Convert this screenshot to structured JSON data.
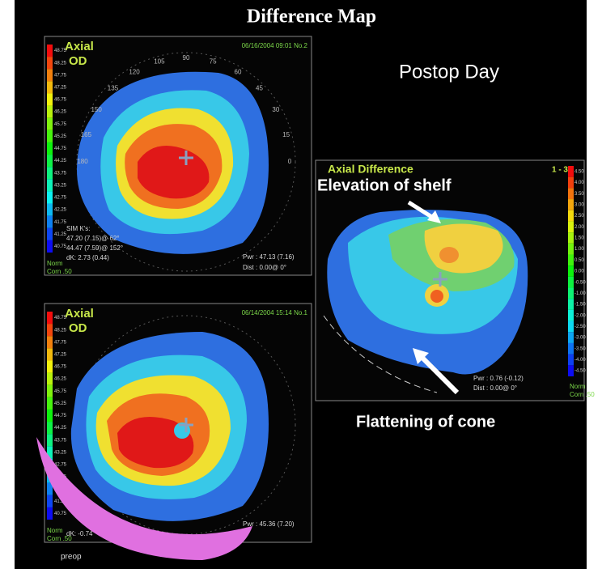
{
  "title": "Difference Map",
  "postop_label": "Postop Day",
  "polar_angles": [
    0,
    15,
    30,
    45,
    60,
    75,
    90,
    105,
    120,
    135,
    150,
    165,
    180
  ],
  "panels": [
    {
      "mode": "Axial",
      "eye": "OD",
      "timestamp": "06/16/2004 09:01 No.2",
      "scale": [
        "48.75",
        "48.25",
        "47.75",
        "47.25",
        "46.75",
        "46.25",
        "45.75",
        "45.25",
        "44.75",
        "44.25",
        "43.75",
        "43.25",
        "42.75",
        "42.25",
        "41.75",
        "41.25",
        "40.75"
      ],
      "scale_footer": [
        "Norm",
        "Corn .50"
      ],
      "sim_k": [
        "SIM K's:",
        "47.20 (7.15)@ 62°",
        "44.47 (7.59)@ 152°",
        "dK: 2.73 (0.44)"
      ],
      "pwr": "Pwr : 47.13 (7.16)",
      "dist": "Dist : 0.00@ 0°"
    },
    {
      "mode": "Axial",
      "eye": "OD",
      "timestamp": "06/14/2004 15:14 No.1",
      "scale": [
        "48.75",
        "48.25",
        "47.75",
        "47.25",
        "46.75",
        "46.25",
        "45.75",
        "45.25",
        "44.75",
        "44.25",
        "43.75",
        "43.25",
        "42.75",
        "42.25",
        "41.75",
        "41.25",
        "40.75"
      ],
      "scale_footer": [
        "Norm",
        "Corn .50"
      ],
      "sim_k": [
        "dK: -0.74"
      ],
      "pwr": "Pwr : 45.36 (7.20)"
    },
    {
      "mode": "Axial Difference",
      "range": "1 - 3",
      "scale": [
        "4.50",
        "4.00",
        "3.50",
        "3.00",
        "2.50",
        "2.00",
        "1.50",
        "1.00",
        "0.50",
        "0.00",
        "-0.50",
        "-1.00",
        "-1.50",
        "-2.00",
        "-2.50",
        "-3.00",
        "-3.50",
        "-4.00",
        "-4.50"
      ],
      "scale_footer": [
        "Norm",
        "Corn .50"
      ],
      "pwr": "Pwr : 0.76 (-0.12)",
      "dist": "Dist : 0.00@ 0°"
    }
  ],
  "annotations": {
    "elevation": "Elevation of shelf",
    "flattening": "Flattening of cone"
  },
  "footer": "preop"
}
